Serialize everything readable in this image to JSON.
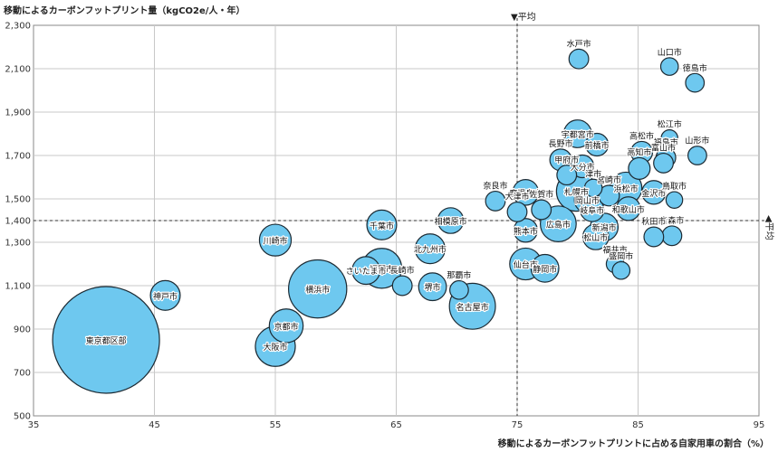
{
  "chart_data": {
    "type": "scatter",
    "title": "",
    "ylabel": "移動によるカーボンフットプリント量（kgCO2e/人・年）",
    "xlabel": "移動によるカーボンフットプリントに占める自家用車の割合（%）",
    "xlim": [
      35,
      95
    ],
    "ylim": [
      500,
      2300
    ],
    "xticks": [
      "35",
      "45",
      "55",
      "65",
      "75",
      "85",
      "95"
    ],
    "yticks": [
      "500",
      "700",
      "900",
      "1,100",
      "1,300",
      "1,400",
      "1,500",
      "1,700",
      "1,900",
      "2,100",
      "2,300"
    ],
    "grid": true,
    "avg_x": 75,
    "avg_y": 1400,
    "avg_label_top": "▼平均",
    "avg_label_right": "◀平均",
    "bubble_color": "#6ec8ef",
    "points": [
      {
        "name": "東京都区部",
        "x": 41,
        "y": 850,
        "size": 100
      },
      {
        "name": "神戸市",
        "x": 45.9,
        "y": 1055,
        "size": 24
      },
      {
        "name": "川崎市",
        "x": 55,
        "y": 1310,
        "size": 26
      },
      {
        "name": "京都市",
        "x": 55.9,
        "y": 915,
        "size": 28
      },
      {
        "name": "大阪市",
        "x": 55,
        "y": 820,
        "size": 34
      },
      {
        "name": "横浜市",
        "x": 58.5,
        "y": 1085,
        "size": 52
      },
      {
        "name": "さいたま市",
        "x": 62.5,
        "y": 1170,
        "size": 22
      },
      {
        "name": "福岡市",
        "x": 63.8,
        "y": 1180,
        "size": 34
      },
      {
        "name": "千葉市",
        "x": 63.8,
        "y": 1380,
        "size": 24
      },
      {
        "name": "長崎市",
        "x": 65.5,
        "y": 1100,
        "size": 14
      },
      {
        "name": "北九州市",
        "x": 67.8,
        "y": 1270,
        "size": 24
      },
      {
        "name": "堺市",
        "x": 68,
        "y": 1095,
        "size": 22
      },
      {
        "name": "相模原市",
        "x": 69.5,
        "y": 1400,
        "size": 20
      },
      {
        "name": "那覇市",
        "x": 70.2,
        "y": 1080,
        "size": 13
      },
      {
        "name": "名古屋市",
        "x": 71.3,
        "y": 1005,
        "size": 40
      },
      {
        "name": "奈良市",
        "x": 73.2,
        "y": 1490,
        "size": 14
      },
      {
        "name": "大津市",
        "x": 75,
        "y": 1440,
        "size": 14
      },
      {
        "name": "鹿児島市",
        "x": 75.7,
        "y": 1530,
        "size": 20
      },
      {
        "name": "熊本市",
        "x": 75.7,
        "y": 1355,
        "size": 18
      },
      {
        "name": "仙台市",
        "x": 75.7,
        "y": 1200,
        "size": 26
      },
      {
        "name": "静岡市",
        "x": 77.3,
        "y": 1180,
        "size": 22
      },
      {
        "name": "佐賀市",
        "x": 77,
        "y": 1450,
        "size": 14
      },
      {
        "name": "広島市",
        "x": 78.4,
        "y": 1385,
        "size": 30
      },
      {
        "name": "水戸市",
        "x": 80.1,
        "y": 2145,
        "size": 14
      },
      {
        "name": "宇都宮市",
        "x": 80,
        "y": 1800,
        "size": 22
      },
      {
        "name": "前橋市",
        "x": 81.6,
        "y": 1750,
        "size": 17
      },
      {
        "name": "長野市",
        "x": 78.6,
        "y": 1680,
        "size": 16
      },
      {
        "name": "甲府市",
        "x": 79.1,
        "y": 1610,
        "size": 14
      },
      {
        "name": "大分市",
        "x": 80.4,
        "y": 1650,
        "size": 17
      },
      {
        "name": "札幌市",
        "x": 79.9,
        "y": 1535,
        "size": 34
      },
      {
        "name": "津市",
        "x": 81.3,
        "y": 1550,
        "size": 12
      },
      {
        "name": "岡山市",
        "x": 80.8,
        "y": 1495,
        "size": 20
      },
      {
        "name": "岐阜市",
        "x": 81.2,
        "y": 1450,
        "size": 18
      },
      {
        "name": "新潟市",
        "x": 82.2,
        "y": 1370,
        "size": 22
      },
      {
        "name": "松山市",
        "x": 81.5,
        "y": 1325,
        "size": 20
      },
      {
        "name": "宮崎市",
        "x": 82.6,
        "y": 1515,
        "size": 15
      },
      {
        "name": "浜松市",
        "x": 84,
        "y": 1550,
        "size": 26
      },
      {
        "name": "和歌山市",
        "x": 84.2,
        "y": 1455,
        "size": 18
      },
      {
        "name": "高松市",
        "x": 85.3,
        "y": 1715,
        "size": 16
      },
      {
        "name": "高知市",
        "x": 85.1,
        "y": 1640,
        "size": 16
      },
      {
        "name": "福島市",
        "x": 87.3,
        "y": 1690,
        "size": 14
      },
      {
        "name": "富山市",
        "x": 87.1,
        "y": 1665,
        "size": 14
      },
      {
        "name": "松江市",
        "x": 87.6,
        "y": 1780,
        "size": 11
      },
      {
        "name": "山形市",
        "x": 89.9,
        "y": 1700,
        "size": 13
      },
      {
        "name": "山口市",
        "x": 87.6,
        "y": 2110,
        "size": 12
      },
      {
        "name": "徳島市",
        "x": 89.7,
        "y": 2035,
        "size": 13
      },
      {
        "name": "金沢市",
        "x": 86.3,
        "y": 1530,
        "size": 18
      },
      {
        "name": "鳥取市",
        "x": 88,
        "y": 1495,
        "size": 11
      },
      {
        "name": "青森市",
        "x": 87.8,
        "y": 1330,
        "size": 14
      },
      {
        "name": "秋田市",
        "x": 86.3,
        "y": 1325,
        "size": 14
      },
      {
        "name": "福井市",
        "x": 83.1,
        "y": 1200,
        "size": 12
      },
      {
        "name": "盛岡市",
        "x": 83.6,
        "y": 1170,
        "size": 12
      }
    ]
  }
}
